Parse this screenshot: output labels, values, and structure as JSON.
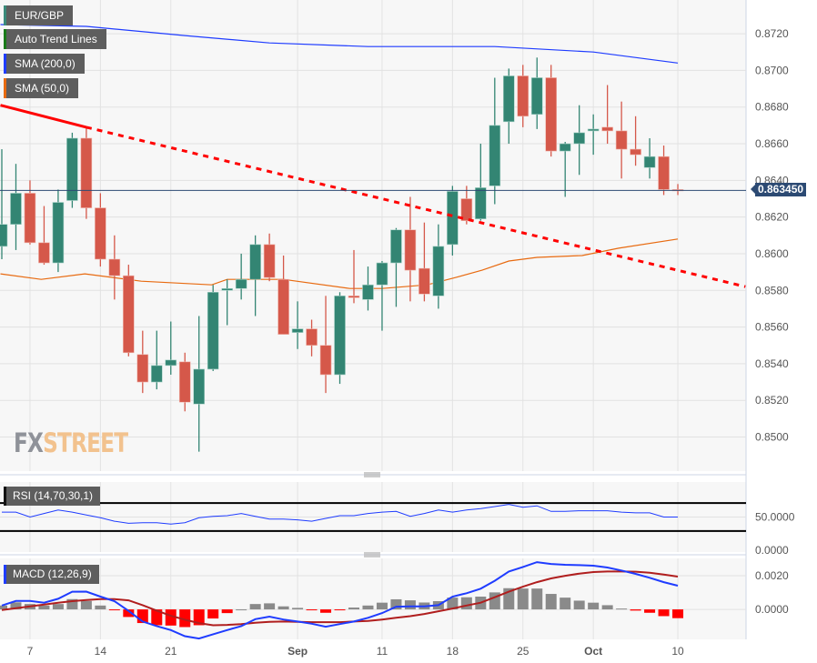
{
  "legend": {
    "items": [
      {
        "label": "EUR/GBP",
        "color": "#3a8a7a"
      },
      {
        "label": "Auto Trend Lines",
        "color": "#1a7a1a"
      },
      {
        "label": "SMA (200,0)",
        "color": "#1f3cff"
      },
      {
        "label": "SMA (50,0)",
        "color": "#e86a10"
      }
    ]
  },
  "logo": {
    "part1": "FX",
    "part2": "STREET"
  },
  "current_price": "0.863450",
  "colors": {
    "up": "#338573",
    "down": "#d5584a",
    "trend": "#ff0000",
    "sma200": "#1f3cff",
    "sma50": "#e86a10",
    "macd": "#1f3cff",
    "signal": "#b01e1e",
    "hist_pos": "#8a8a8a",
    "hist_neg": "#ff0000",
    "price_line": "#2c4a73"
  },
  "chart_data": {
    "type": "candlestick",
    "symbol": "EUR/GBP",
    "x_labels": [
      {
        "index": 2,
        "label": "7"
      },
      {
        "index": 7,
        "label": "14"
      },
      {
        "index": 12,
        "label": "21"
      },
      {
        "index": 21,
        "label": "Sep"
      },
      {
        "index": 27,
        "label": "11"
      },
      {
        "index": 32,
        "label": "18"
      },
      {
        "index": 37,
        "label": "25"
      },
      {
        "index": 42,
        "label": "Oct"
      },
      {
        "index": 48,
        "label": "10"
      }
    ],
    "y_ticks": [
      "0.8500",
      "0.8520",
      "0.8540",
      "0.8560",
      "0.8580",
      "0.8600",
      "0.8620",
      "0.8640",
      "0.8660",
      "0.8680",
      "0.8700",
      "0.8720"
    ],
    "ylim": [
      0.84814,
      0.87384
    ],
    "grid": true,
    "ohlc": [
      [
        0.8604,
        0.8657,
        0.8597,
        0.8616
      ],
      [
        0.8616,
        0.8649,
        0.8602,
        0.8633
      ],
      [
        0.8633,
        0.864,
        0.8605,
        0.8606
      ],
      [
        0.8606,
        0.8626,
        0.8594,
        0.8595
      ],
      [
        0.8595,
        0.8635,
        0.859,
        0.8628
      ],
      [
        0.8629,
        0.8666,
        0.8625,
        0.8663
      ],
      [
        0.8663,
        0.8669,
        0.8619,
        0.8625
      ],
      [
        0.8625,
        0.8633,
        0.8593,
        0.8597
      ],
      [
        0.8597,
        0.861,
        0.8575,
        0.8588
      ],
      [
        0.8588,
        0.8594,
        0.8544,
        0.8546
      ],
      [
        0.8545,
        0.8558,
        0.8524,
        0.853
      ],
      [
        0.853,
        0.8558,
        0.8526,
        0.8539
      ],
      [
        0.8539,
        0.8563,
        0.8534,
        0.8542
      ],
      [
        0.8541,
        0.8546,
        0.8514,
        0.8519
      ],
      [
        0.8518,
        0.8566,
        0.8492,
        0.8537
      ],
      [
        0.8537,
        0.8583,
        0.8536,
        0.8579
      ],
      [
        0.858,
        0.8586,
        0.8561,
        0.8581
      ],
      [
        0.8581,
        0.86,
        0.8575,
        0.8586
      ],
      [
        0.8586,
        0.861,
        0.8566,
        0.8605
      ],
      [
        0.8605,
        0.8611,
        0.8585,
        0.8587
      ],
      [
        0.8586,
        0.8599,
        0.8556,
        0.8556
      ],
      [
        0.8557,
        0.8574,
        0.8548,
        0.8559
      ],
      [
        0.8559,
        0.8564,
        0.8544,
        0.855
      ],
      [
        0.855,
        0.8577,
        0.8524,
        0.8534
      ],
      [
        0.8534,
        0.8579,
        0.8529,
        0.8577
      ],
      [
        0.8577,
        0.8602,
        0.8573,
        0.8576
      ],
      [
        0.8575,
        0.8593,
        0.8569,
        0.8583
      ],
      [
        0.8583,
        0.8596,
        0.8558,
        0.8595
      ],
      [
        0.8595,
        0.8614,
        0.8571,
        0.8613
      ],
      [
        0.8613,
        0.8631,
        0.8574,
        0.8591
      ],
      [
        0.8592,
        0.8617,
        0.8574,
        0.8578
      ],
      [
        0.8577,
        0.8616,
        0.857,
        0.8604
      ],
      [
        0.8605,
        0.8637,
        0.8599,
        0.8634
      ],
      [
        0.863,
        0.8637,
        0.8616,
        0.8618
      ],
      [
        0.8619,
        0.866,
        0.8618,
        0.8636
      ],
      [
        0.8637,
        0.8696,
        0.8627,
        0.867
      ],
      [
        0.8672,
        0.8701,
        0.866,
        0.8697
      ],
      [
        0.8697,
        0.8703,
        0.8669,
        0.8675
      ],
      [
        0.8676,
        0.8707,
        0.8668,
        0.8696
      ],
      [
        0.8696,
        0.8703,
        0.8653,
        0.8656
      ],
      [
        0.8656,
        0.8661,
        0.8631,
        0.866
      ],
      [
        0.866,
        0.8681,
        0.8643,
        0.8666
      ],
      [
        0.8667,
        0.8676,
        0.8654,
        0.8668
      ],
      [
        0.8669,
        0.8692,
        0.866,
        0.8667
      ],
      [
        0.8667,
        0.8683,
        0.8641,
        0.8657
      ],
      [
        0.8657,
        0.8675,
        0.8648,
        0.8654
      ],
      [
        0.8647,
        0.8663,
        0.8641,
        0.8653
      ],
      [
        0.8653,
        0.8659,
        0.8632,
        0.8635
      ],
      [
        0.8635,
        0.8638,
        0.8632,
        0.86345
      ]
    ],
    "sma200": [
      [
        -0.1,
        0.8725
      ],
      [
        6,
        0.8724
      ],
      [
        13,
        0.8719
      ],
      [
        19,
        0.8715
      ],
      [
        26,
        0.8713
      ],
      [
        35,
        0.8713
      ],
      [
        42,
        0.871
      ],
      [
        48,
        0.8704
      ]
    ],
    "sma50": [
      [
        -0.1,
        0.8589
      ],
      [
        2.8,
        0.8586
      ],
      [
        5.9,
        0.8589
      ],
      [
        9.9,
        0.8585
      ],
      [
        14.9,
        0.8583
      ],
      [
        16,
        0.8586
      ],
      [
        20,
        0.8586
      ],
      [
        24.7,
        0.8581
      ],
      [
        27,
        0.8581
      ],
      [
        30.2,
        0.8583
      ],
      [
        32.2,
        0.8587
      ],
      [
        34.1,
        0.8591
      ],
      [
        36,
        0.8596
      ],
      [
        38,
        0.8598
      ],
      [
        41.2,
        0.8599
      ],
      [
        43.8,
        0.8603
      ],
      [
        48,
        0.8608
      ]
    ],
    "trend_line": {
      "solid": [
        [
          -0.1,
          0.8681
        ],
        [
          6,
          0.8669
        ]
      ],
      "dashed": [
        [
          6,
          0.8669
        ],
        [
          52.8,
          0.8582
        ]
      ]
    },
    "rsi": {
      "label": "RSI (14,70,30,1)",
      "levels": [
        70,
        30
      ],
      "ticks": [
        "50.0000",
        "0.0000"
      ],
      "ylim": [
        0,
        100
      ],
      "values": [
        57,
        57,
        50,
        55,
        60,
        57,
        53,
        49,
        44,
        41,
        42,
        42,
        40,
        42,
        49,
        51,
        52,
        55,
        51,
        47,
        47,
        46,
        44,
        48,
        52,
        52,
        55,
        57,
        58,
        51,
        55,
        60,
        57,
        60,
        62,
        65,
        68,
        64,
        66,
        58,
        58,
        59,
        59,
        59,
        57,
        56,
        56,
        50,
        50
      ]
    },
    "macd": {
      "label": "MACD (12,26,9)",
      "ticks": [
        "0.0020",
        "0.0000"
      ],
      "ylim": [
        -0.00178,
        0.00303
      ],
      "macd": [
        0.00023,
        0.0005,
        0.0005,
        0.0004,
        0.00063,
        0.00105,
        0.00106,
        0.00076,
        0.00049,
        -9e-05,
        -0.00072,
        -0.00099,
        -0.00123,
        -0.00159,
        -0.00173,
        -0.00148,
        -0.00123,
        -0.00099,
        -0.00058,
        -0.00043,
        -0.0006,
        -0.00072,
        -0.00085,
        -0.00103,
        -0.00087,
        -0.00072,
        -0.0005,
        -0.00022,
        0.00016,
        0.00018,
        0.00018,
        0.00025,
        0.00076,
        0.00096,
        0.00123,
        0.0017,
        0.00225,
        0.00252,
        0.00281,
        0.0027,
        0.00265,
        0.00263,
        0.0026,
        0.00249,
        0.00231,
        0.00211,
        0.00188,
        0.00162,
        0.00141
      ],
      "signal": [
        -4e-05,
        7e-05,
        0.00018,
        0.00029,
        0.0004,
        0.00049,
        0.00056,
        0.00061,
        0.00061,
        0.00054,
        0.00025,
        -7e-05,
        -0.00038,
        -0.00061,
        -0.00081,
        -0.00094,
        -0.00092,
        -0.00087,
        -0.00079,
        -0.00074,
        -0.00072,
        -0.00074,
        -0.00076,
        -0.00076,
        -0.00076,
        -0.00072,
        -0.00069,
        -0.0006,
        -0.0005,
        -0.0004,
        -0.00027,
        -0.00011,
        5e-05,
        0.00023,
        0.0004,
        0.00072,
        0.00105,
        0.00135,
        0.00162,
        0.00184,
        0.002,
        0.00213,
        0.00222,
        0.00225,
        0.00225,
        0.00224,
        0.00218,
        0.00207,
        0.00195
      ],
      "histogram": [
        0.00023,
        0.00042,
        0.00032,
        0.00023,
        0.00032,
        0.00061,
        0.0005,
        0.00023,
        -4e-05,
        -0.00045,
        -0.00081,
        -0.00094,
        -0.00096,
        -0.00105,
        -0.00094,
        -0.00054,
        -0.00022,
        0,
        0.00032,
        0.00036,
        0.00018,
        9e-05,
        -2e-05,
        -0.0002,
        -2e-05,
        0.00011,
        0.00023,
        0.0004,
        0.0006,
        0.00054,
        0.00041,
        0.00049,
        0.0007,
        0.00072,
        0.00076,
        0.00101,
        0.00126,
        0.00124,
        0.00124,
        0.00092,
        0.0007,
        0.00052,
        0.0004,
        0.00025,
        5e-05,
        -7e-05,
        -0.0002,
        -0.0004,
        -0.00052
      ]
    }
  }
}
